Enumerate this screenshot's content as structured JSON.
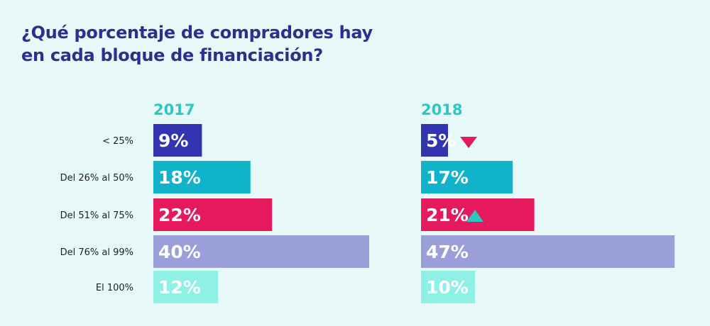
{
  "title": "¿Qué porcentaje de compradores hay en cada bloque de financiación?",
  "colors": {
    "background": "#e6f9f8",
    "title": "#2d2f8f",
    "year": "#2cc8c0",
    "up_marker": "#2cc8c0",
    "down_marker": "#e5195c"
  },
  "chart_data": [
    {
      "type": "bar",
      "orientation": "horizontal",
      "title": "2017",
      "categories": [
        "< 25%",
        "Del 26% al 50%",
        "Del 51% al 75%",
        "Del 76% al 99%",
        "El 100%"
      ],
      "values": [
        9,
        18,
        22,
        40,
        12
      ],
      "labels": [
        "9%",
        "18%",
        "22%",
        "40%",
        "12%"
      ],
      "bar_colors": [
        "#3235b0",
        "#10b3c9",
        "#e5195c",
        "#9a9fd9",
        "#8ff0e6"
      ],
      "xlim": [
        0,
        50
      ]
    },
    {
      "type": "bar",
      "orientation": "horizontal",
      "title": "2018",
      "categories": [
        "< 25%",
        "Del 26% al 50%",
        "Del 51% al 75%",
        "Del 76% al 99%",
        "El 100%"
      ],
      "values": [
        5,
        17,
        21,
        47,
        10
      ],
      "labels": [
        "5%",
        "17%",
        "21%",
        "47%",
        "10%"
      ],
      "bar_colors": [
        "#3235b0",
        "#10b3c9",
        "#e5195c",
        "#9a9fd9",
        "#8ff0e6"
      ],
      "markers": [
        "down",
        "",
        "up",
        "",
        ""
      ],
      "xlim": [
        0,
        50
      ]
    }
  ]
}
